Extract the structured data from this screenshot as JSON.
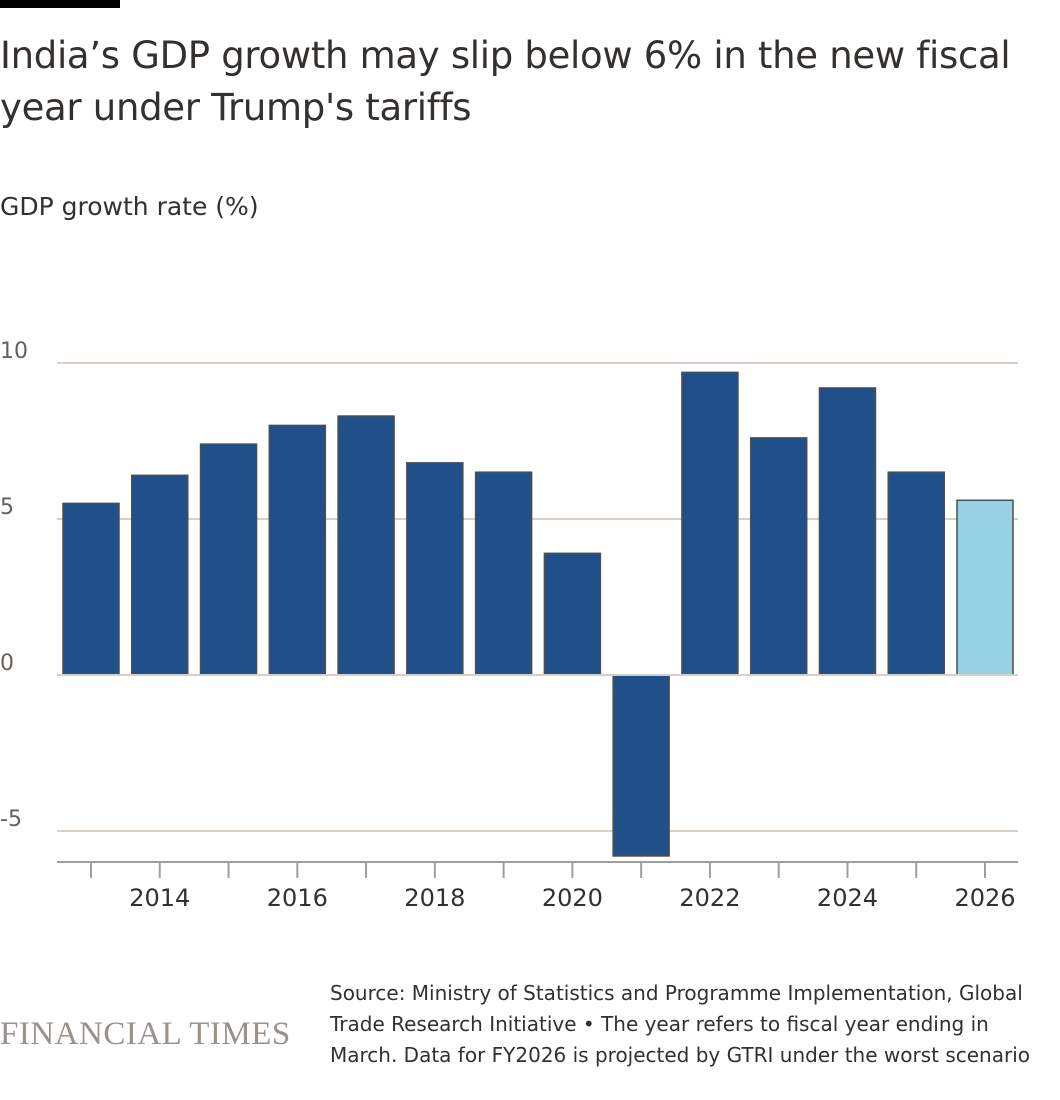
{
  "title": "India’s GDP growth may slip below 6% in the new fiscal year under Trump's tariffs",
  "source": "Source: Ministry of Statistics and Programme Implementation, Global Trade Research Initiative • The year refers to fiscal year ending in March. Data for FY2026 is projected by GTRI under the worst scenario",
  "logo": "FINANCIAL TIMES",
  "colors": {
    "actual": "#1f5089",
    "projected": "#96d2e4",
    "grid": "#d9cfc7",
    "axis": "#a39d97"
  },
  "chart_data": {
    "type": "bar",
    "title": "India’s GDP growth may slip below 6% in the new fiscal year under Trump's tariffs",
    "ylabel": "GDP growth rate (%)",
    "xlabel": "",
    "categories": [
      "2013",
      "2014",
      "2015",
      "2016",
      "2017",
      "2018",
      "2019",
      "2020",
      "2021",
      "2022",
      "2023",
      "2024",
      "2025",
      "2026"
    ],
    "values": [
      5.5,
      6.4,
      7.4,
      8.0,
      8.3,
      6.8,
      6.5,
      3.9,
      -5.8,
      9.7,
      7.6,
      9.2,
      6.5,
      5.6
    ],
    "projected": [
      false,
      false,
      false,
      false,
      false,
      false,
      false,
      false,
      false,
      false,
      false,
      false,
      false,
      true
    ],
    "ylim": [
      -6,
      10
    ],
    "yticks": [
      "10",
      "5",
      "0",
      "-5"
    ],
    "ytick_values": [
      10,
      5,
      0,
      -5
    ],
    "xticks": [
      "2014",
      "2016",
      "2018",
      "2020",
      "2022",
      "2024",
      "2026"
    ],
    "grid": true,
    "legend": "none"
  }
}
